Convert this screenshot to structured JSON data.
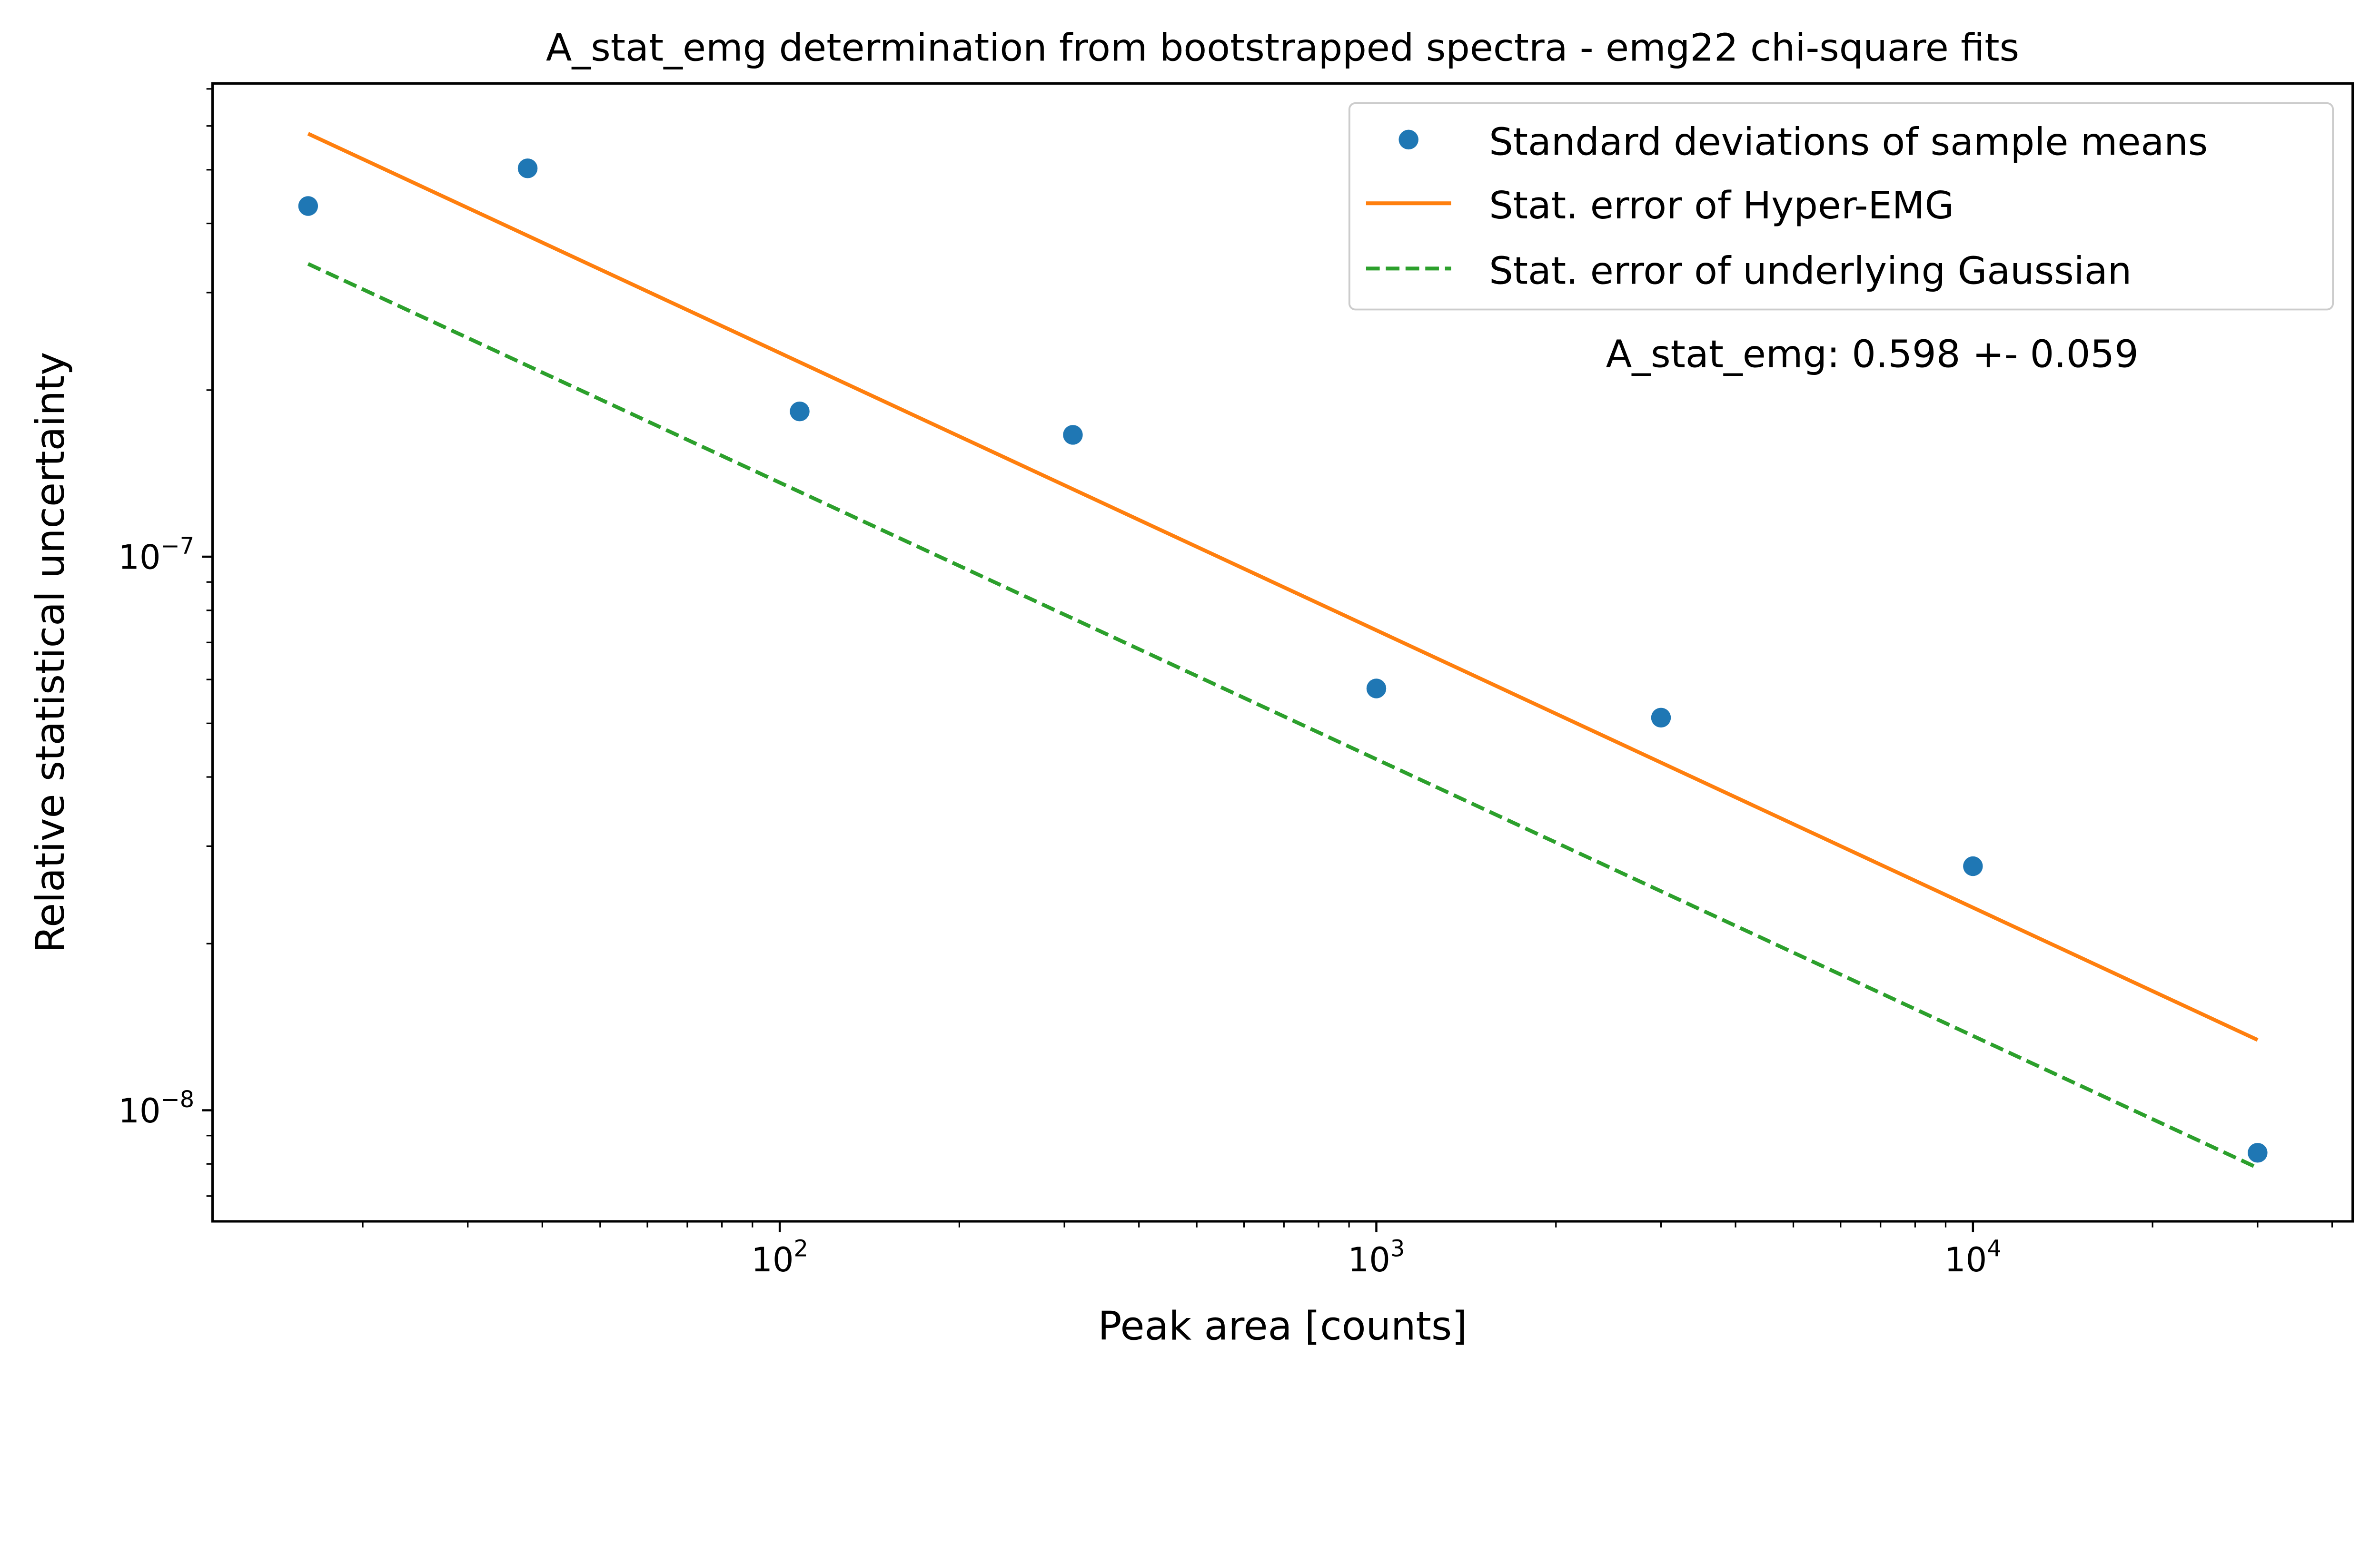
{
  "chart_data": {
    "type": "scatter",
    "title": "A_stat_emg determination from bootstrapped spectra - emg22 chi-square fits",
    "xlabel": "Peak area [counts]",
    "ylabel": "Relative statistical uncertainty",
    "xscale": "log",
    "yscale": "log",
    "xlim": [
      11.2,
      43300
    ],
    "ylim": [
      6.3e-09,
      7.16e-07
    ],
    "grid": false,
    "legend_position": "top-right",
    "x_ticks": [
      {
        "value": 100,
        "base": "10",
        "exp": "2"
      },
      {
        "value": 1000,
        "base": "10",
        "exp": "3"
      },
      {
        "value": 10000,
        "base": "10",
        "exp": "4"
      }
    ],
    "y_ticks": [
      {
        "value": 1e-07,
        "base": "10",
        "exp": "−7"
      },
      {
        "value": 1e-08,
        "base": "10",
        "exp": "−8"
      }
    ],
    "annotation": "A_stat_emg: 0.598 +- 0.059",
    "series": [
      {
        "name": "Standard deviations of sample means",
        "kind": "markers",
        "color": "#1f77b4",
        "x": [
          16.2,
          37.8,
          108,
          310,
          1000,
          3000,
          10000,
          30000
        ],
        "y": [
          4.3e-07,
          5.03e-07,
          1.83e-07,
          1.66e-07,
          5.78e-08,
          5.12e-08,
          2.76e-08,
          8.38e-09
        ]
      },
      {
        "name": "Stat. error of Hyper-EMG",
        "kind": "line",
        "style": "solid",
        "color": "#ff7f0e",
        "x": [
          16.2,
          30000
        ],
        "y": [
          5.81e-07,
          1.34e-08
        ]
      },
      {
        "name": "Stat. error of underlying Gaussian",
        "kind": "line",
        "style": "dashed",
        "color": "#2ca02c",
        "x": [
          16.2,
          30000
        ],
        "y": [
          3.38e-07,
          7.87e-09
        ]
      }
    ]
  }
}
